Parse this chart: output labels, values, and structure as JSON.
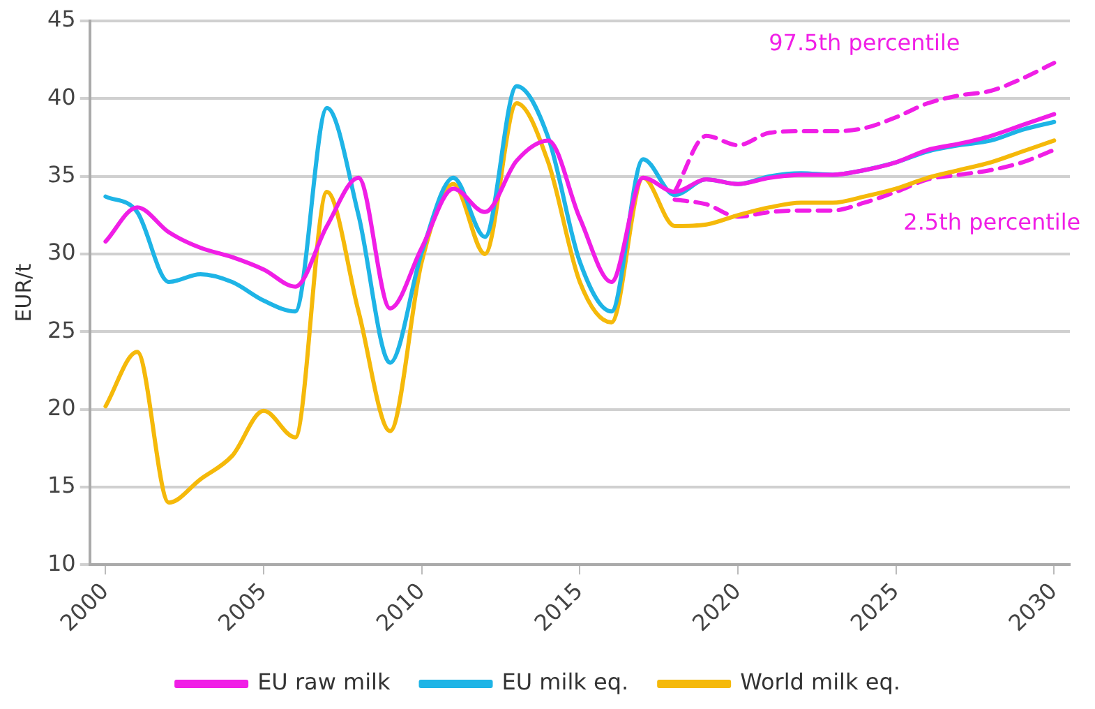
{
  "chart_data": {
    "type": "line",
    "ylabel": "EUR/t",
    "x": [
      2000,
      2001,
      2002,
      2003,
      2004,
      2005,
      2006,
      2007,
      2008,
      2009,
      2010,
      2011,
      2012,
      2013,
      2014,
      2015,
      2016,
      2017,
      2018,
      2019,
      2020,
      2021,
      2022,
      2023,
      2024,
      2025,
      2026,
      2027,
      2028,
      2029,
      2030
    ],
    "xlim": [
      1999.5,
      2030.5
    ],
    "xticks": [
      2000,
      2005,
      2010,
      2015,
      2020,
      2025,
      2030
    ],
    "ylim": [
      10,
      45
    ],
    "yticks": [
      10,
      15,
      20,
      25,
      30,
      35,
      40,
      45
    ],
    "grid": "y",
    "legend": "bottom",
    "marker": "none",
    "line_style": "solid",
    "series": [
      {
        "name": "EU raw milk",
        "color": "#f01ee6",
        "values": [
          30.8,
          33.0,
          31.4,
          30.4,
          29.8,
          29.0,
          27.9,
          31.8,
          34.9,
          26.5,
          30.4,
          34.2,
          32.7,
          36.0,
          37.3,
          32.3,
          28.2,
          34.9,
          34.0,
          34.8,
          34.5,
          34.9,
          35.1,
          35.1,
          35.4,
          35.9,
          36.7,
          37.1,
          37.6,
          38.3,
          39.0
        ]
      },
      {
        "name": "EU milk eq.",
        "color": "#1eb4e6",
        "values": [
          33.7,
          32.7,
          28.2,
          28.7,
          28.2,
          27.0,
          26.3,
          39.4,
          32.5,
          23.0,
          30.1,
          34.9,
          31.1,
          40.8,
          37.5,
          29.5,
          26.3,
          36.1,
          33.8,
          34.8,
          34.5,
          35.0,
          35.2,
          35.1,
          35.4,
          35.9,
          36.6,
          37.0,
          37.3,
          38.0,
          38.5
        ]
      },
      {
        "name": "World milk eq.",
        "color": "#f5b90a",
        "values": [
          20.2,
          23.7,
          14.0,
          15.5,
          17.0,
          19.9,
          18.2,
          34.0,
          26.3,
          18.6,
          29.5,
          34.5,
          30.0,
          39.7,
          35.9,
          28.2,
          25.6,
          34.9,
          31.8,
          31.9,
          32.5,
          33.0,
          33.3,
          33.3,
          33.7,
          34.2,
          34.9,
          35.4,
          35.9,
          36.6,
          37.3
        ]
      },
      {
        "name": "97.5th percentile",
        "color": "#f01ee6",
        "line_style": "dashed",
        "x": [
          2018,
          2019,
          2020,
          2021,
          2022,
          2023,
          2024,
          2025,
          2026,
          2027,
          2028,
          2029,
          2030
        ],
        "values": [
          34.0,
          37.6,
          37.0,
          37.8,
          37.9,
          37.9,
          38.1,
          38.8,
          39.7,
          40.2,
          40.5,
          41.3,
          42.3
        ]
      },
      {
        "name": "2.5th percentile",
        "color": "#f01ee6",
        "line_style": "dashed",
        "x": [
          2018,
          2019,
          2020,
          2021,
          2022,
          2023,
          2024,
          2025,
          2026,
          2027,
          2028,
          2029,
          2030
        ],
        "values": [
          33.5,
          33.2,
          32.4,
          32.7,
          32.8,
          32.8,
          33.3,
          34.0,
          34.8,
          35.1,
          35.4,
          35.9,
          36.7
        ]
      }
    ]
  }
}
